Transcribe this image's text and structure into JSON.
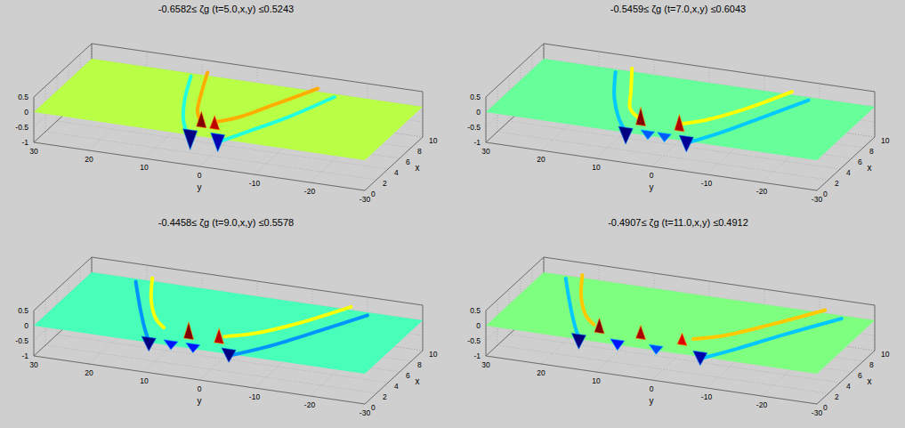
{
  "chart_data": [
    {
      "type": "surface",
      "title": "-0.6582≤ ζg (t=5.0,x,y) ≤0.5243",
      "x_label": "x",
      "y_label": "y",
      "xlim": [
        0,
        10
      ],
      "xticks": [
        0,
        2,
        4,
        6,
        8,
        10
      ],
      "ylim": [
        -30,
        30
      ],
      "yticks": [
        -30,
        -20,
        -10,
        0,
        10,
        20,
        30
      ],
      "zlim": [
        -1,
        0.5
      ],
      "zticks": [
        -1,
        -0.5,
        0,
        0.5
      ],
      "clim": [
        -0.6582,
        0.5243
      ],
      "grid": true,
      "troughs": {
        "x": [
          0.8,
          0.8
        ],
        "y": [
          2.5,
          -2.5
        ],
        "z": [
          -0.66,
          -0.6
        ]
      },
      "crests": {
        "x": [
          1.5,
          1.5
        ],
        "y": [
          1.2,
          -1.2
        ],
        "z": [
          0.52,
          0.45
        ]
      },
      "wakes": [
        {
          "x": [
            1,
            3,
            6,
            10
          ],
          "y": [
            3,
            6,
            9,
            12
          ],
          "z": [
            -0.25,
            -0.2,
            -0.15,
            -0.1
          ]
        },
        {
          "x": [
            1,
            3,
            6,
            10
          ],
          "y": [
            -3,
            -6,
            -10,
            -14
          ],
          "z": [
            -0.25,
            -0.2,
            -0.15,
            -0.1
          ]
        },
        {
          "x": [
            1.5,
            3,
            6,
            10
          ],
          "y": [
            1.5,
            3.5,
            6,
            9
          ],
          "z": [
            0.25,
            0.2,
            0.15,
            0.1
          ]
        },
        {
          "x": [
            1.5,
            3,
            6,
            10
          ],
          "y": [
            -1.5,
            -4,
            -7,
            -11
          ],
          "z": [
            0.25,
            0.2,
            0.15,
            0.1
          ]
        }
      ]
    },
    {
      "type": "surface",
      "title": "-0.5459≤ ζg (t=7.0,x,y) ≤0.6043",
      "x_label": "x",
      "y_label": "y",
      "xlim": [
        0,
        10
      ],
      "xticks": [
        0,
        2,
        4,
        6,
        8,
        10
      ],
      "ylim": [
        -30,
        30
      ],
      "yticks": [
        -30,
        -20,
        -10,
        0,
        10,
        20,
        30
      ],
      "zlim": [
        -1,
        0.5
      ],
      "zticks": [
        -1,
        -0.5,
        0,
        0.5
      ],
      "clim": [
        -0.5459,
        0.6043
      ],
      "grid": true,
      "troughs": {
        "x": [
          0.8,
          0.8,
          0.8,
          0.8
        ],
        "y": [
          5.5,
          1.5,
          -1.5,
          -5.5
        ],
        "z": [
          -0.55,
          -0.3,
          -0.3,
          -0.52
        ]
      },
      "crests": {
        "x": [
          1.5,
          1.5
        ],
        "y": [
          3.5,
          -3.5
        ],
        "z": [
          0.6,
          0.55
        ]
      },
      "wakes": [
        {
          "x": [
            1,
            3,
            6,
            10
          ],
          "y": [
            5.5,
            9,
            13,
            17
          ],
          "z": [
            -0.25,
            -0.2,
            -0.15,
            -0.1
          ]
        },
        {
          "x": [
            1,
            3,
            6,
            10
          ],
          "y": [
            -5.5,
            -9,
            -13,
            -18
          ],
          "z": [
            -0.25,
            -0.2,
            -0.15,
            -0.1
          ]
        },
        {
          "x": [
            1.5,
            3,
            6,
            10
          ],
          "y": [
            4,
            7,
            10,
            14
          ],
          "z": [
            0.25,
            0.2,
            0.15,
            0.1
          ]
        },
        {
          "x": [
            1.5,
            3,
            6,
            10
          ],
          "y": [
            -4,
            -7,
            -11,
            -15
          ],
          "z": [
            0.25,
            0.2,
            0.15,
            0.1
          ]
        }
      ]
    },
    {
      "type": "surface",
      "title": "-0.4458≤ ζg (t=9.0,x,y) ≤0.5578",
      "x_label": "x",
      "y_label": "y",
      "xlim": [
        0,
        10
      ],
      "xticks": [
        0,
        2,
        4,
        6,
        8,
        10
      ],
      "ylim": [
        -30,
        30
      ],
      "yticks": [
        -30,
        -20,
        -10,
        0,
        10,
        20,
        30
      ],
      "zlim": [
        -1,
        0.5
      ],
      "zticks": [
        -1,
        -0.5,
        0,
        0.5
      ],
      "clim": [
        -0.4458,
        0.5578
      ],
      "grid": true,
      "troughs": {
        "x": [
          0.8,
          0.8,
          0.8,
          0.8
        ],
        "y": [
          10,
          6,
          2,
          -4.5
        ],
        "z": [
          -0.45,
          -0.3,
          -0.3,
          -0.44
        ]
      },
      "crests": {
        "x": [
          1.5,
          1.5
        ],
        "y": [
          3.5,
          -2
        ],
        "z": [
          0.56,
          0.5
        ]
      },
      "wakes": [
        {
          "x": [
            1,
            3,
            6,
            10
          ],
          "y": [
            10,
            13,
            17,
            22
          ],
          "z": [
            -0.25,
            -0.2,
            -0.15,
            -0.1
          ]
        },
        {
          "x": [
            1,
            3,
            6,
            10
          ],
          "y": [
            -4.5,
            -9,
            -14,
            -20
          ],
          "z": [
            -0.25,
            -0.2,
            -0.15,
            -0.1
          ]
        },
        {
          "x": [
            1.5,
            3,
            6,
            10
          ],
          "y": [
            8,
            11,
            15,
            19
          ],
          "z": [
            0.25,
            0.2,
            0.15,
            0.1
          ]
        },
        {
          "x": [
            1.5,
            3,
            6,
            10
          ],
          "y": [
            -3,
            -7,
            -12,
            -17
          ],
          "z": [
            0.25,
            0.2,
            0.15,
            0.1
          ]
        }
      ]
    },
    {
      "type": "surface",
      "title": "-0.4907≤ ζg (t=11.0,x,y) ≤0.4912",
      "x_label": "x",
      "y_label": "y",
      "xlim": [
        0,
        10
      ],
      "xticks": [
        0,
        2,
        4,
        6,
        8,
        10
      ],
      "ylim": [
        -30,
        30
      ],
      "yticks": [
        -30,
        -20,
        -10,
        0,
        10,
        20,
        30
      ],
      "zlim": [
        -1,
        0.5
      ],
      "zticks": [
        -1,
        -0.5,
        0,
        0.5
      ],
      "clim": [
        -0.4907,
        0.4912
      ],
      "grid": true,
      "troughs": {
        "x": [
          0.8,
          0.8,
          0.8,
          0.8
        ],
        "y": [
          14,
          7,
          0,
          -8
        ],
        "z": [
          -0.49,
          -0.35,
          -0.3,
          -0.45
        ]
      },
      "crests": {
        "x": [
          1.5,
          1.5,
          1.5
        ],
        "y": [
          11,
          3.5,
          -4
        ],
        "z": [
          0.49,
          0.45,
          0.4
        ]
      },
      "wakes": [
        {
          "x": [
            1,
            3,
            6,
            10
          ],
          "y": [
            14,
            17,
            21,
            26
          ],
          "z": [
            -0.25,
            -0.2,
            -0.15,
            -0.1
          ]
        },
        {
          "x": [
            1,
            3,
            6,
            10
          ],
          "y": [
            -8,
            -12,
            -17,
            -24
          ],
          "z": [
            -0.25,
            -0.2,
            -0.15,
            -0.1
          ]
        },
        {
          "x": [
            1.5,
            3,
            6,
            10
          ],
          "y": [
            12,
            15,
            19,
            23
          ],
          "z": [
            0.25,
            0.2,
            0.15,
            0.1
          ]
        },
        {
          "x": [
            1.5,
            3,
            6,
            10
          ],
          "y": [
            -6,
            -10,
            -15,
            -21
          ],
          "z": [
            0.25,
            0.2,
            0.15,
            0.1
          ]
        }
      ]
    }
  ]
}
